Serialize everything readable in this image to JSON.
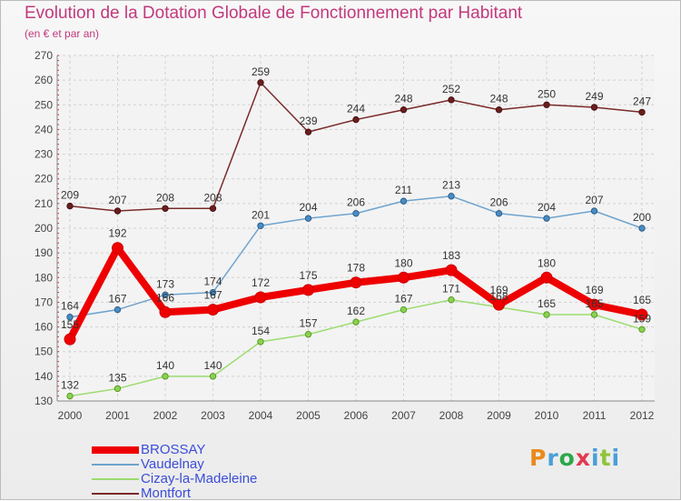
{
  "header": {
    "title": "Evolution de la Dotation Globale de Fonctionnement par Habitant",
    "subtitle": "(en € et par an)"
  },
  "brand": {
    "text": "Proxiti",
    "colors": [
      "#e98b1c",
      "#4a9fd8",
      "#2da84a",
      "#e23a4e",
      "#4a9fd8",
      "#8fc43b",
      "#4a9fd8"
    ]
  },
  "chart_data": {
    "type": "line",
    "title": "Evolution de la Dotation Globale de Fonctionnement par Habitant",
    "subtitle": "(en € et par an)",
    "xlabel": "",
    "ylabel": "",
    "x": [
      "2000",
      "2001",
      "2002",
      "2003",
      "2004",
      "2005",
      "2006",
      "2007",
      "2008",
      "2009",
      "2010",
      "2011",
      "2012"
    ],
    "ylim": [
      130,
      270
    ],
    "yticks": [
      130,
      140,
      150,
      160,
      170,
      180,
      190,
      200,
      210,
      220,
      230,
      240,
      250,
      260,
      270
    ],
    "grid": true,
    "legend_position": "bottom-left",
    "series": [
      {
        "name": "BROSSAY",
        "color": "#ee0000",
        "values": [
          155,
          192,
          166,
          167,
          172,
          175,
          178,
          180,
          183,
          169,
          180,
          169,
          165
        ]
      },
      {
        "name": "Vaudelnay",
        "color": "#6ea4cf",
        "values": [
          164,
          167,
          173,
          174,
          201,
          204,
          206,
          211,
          213,
          206,
          204,
          207,
          200
        ]
      },
      {
        "name": "Cizay-la-Madeleine",
        "color": "#9bdc6f",
        "values": [
          132,
          135,
          140,
          140,
          154,
          157,
          162,
          167,
          171,
          168,
          165,
          165,
          159
        ]
      },
      {
        "name": "Montfort",
        "color": "#7a2a2a",
        "values": [
          209,
          207,
          208,
          208,
          259,
          239,
          244,
          248,
          252,
          248,
          250,
          249,
          247
        ]
      }
    ]
  }
}
